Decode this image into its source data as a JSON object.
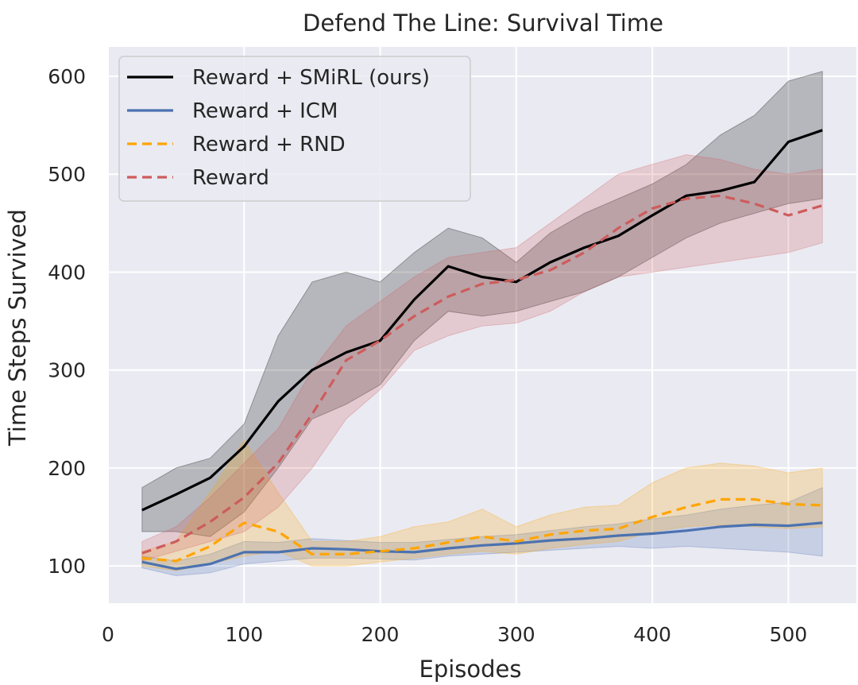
{
  "chart_data": {
    "type": "line",
    "title": "Defend The Line: Survival Time",
    "xlabel": "Episodes",
    "ylabel": "Time Steps Survived",
    "xlim": [
      0,
      550
    ],
    "ylim": [
      62,
      630
    ],
    "xticks": [
      0,
      100,
      200,
      300,
      400,
      500
    ],
    "yticks": [
      100,
      200,
      300,
      400,
      500,
      600
    ],
    "grid": true,
    "legend_position": "top-left",
    "background": "#eaeaf2",
    "series": [
      {
        "name": "Reward + SMiRL (ours)",
        "color": "#000000",
        "dash": "solid",
        "x": [
          25,
          50,
          75,
          100,
          125,
          150,
          175,
          200,
          225,
          250,
          275,
          300,
          325,
          350,
          375,
          400,
          425,
          450,
          475,
          500,
          525
        ],
        "y": [
          157,
          173,
          190,
          222,
          268,
          300,
          318,
          330,
          372,
          406,
          395,
          390,
          410,
          425,
          437,
          458,
          478,
          483,
          492,
          533,
          545
        ],
        "lower": [
          135,
          135,
          130,
          155,
          200,
          250,
          265,
          285,
          330,
          360,
          355,
          360,
          370,
          380,
          395,
          415,
          435,
          450,
          460,
          470,
          475
        ],
        "upper": [
          180,
          200,
          210,
          245,
          335,
          390,
          400,
          390,
          420,
          445,
          435,
          410,
          440,
          460,
          475,
          490,
          510,
          540,
          560,
          595,
          605
        ]
      },
      {
        "name": "Reward + ICM",
        "color": "#4c72b0",
        "dash": "solid",
        "x": [
          25,
          50,
          75,
          100,
          125,
          150,
          175,
          200,
          225,
          250,
          275,
          300,
          325,
          350,
          375,
          400,
          425,
          450,
          475,
          500,
          525
        ],
        "y": [
          104,
          97,
          102,
          114,
          114,
          118,
          117,
          115,
          114,
          118,
          121,
          123,
          126,
          128,
          131,
          133,
          136,
          140,
          142,
          141,
          144
        ],
        "lower": [
          98,
          90,
          93,
          102,
          105,
          108,
          108,
          107,
          106,
          110,
          112,
          114,
          116,
          118,
          120,
          118,
          120,
          118,
          116,
          114,
          110
        ],
        "upper": [
          110,
          105,
          112,
          125,
          124,
          128,
          126,
          124,
          124,
          127,
          130,
          132,
          136,
          140,
          143,
          148,
          152,
          158,
          162,
          165,
          180
        ]
      },
      {
        "name": "Reward + RND",
        "color": "#ffa500",
        "dash": "dashed",
        "x": [
          25,
          50,
          75,
          100,
          125,
          150,
          175,
          200,
          225,
          250,
          275,
          300,
          325,
          350,
          375,
          400,
          425,
          450,
          475,
          500,
          525
        ],
        "y": [
          108,
          105,
          120,
          144,
          135,
          112,
          112,
          115,
          118,
          124,
          130,
          125,
          132,
          136,
          138,
          150,
          160,
          168,
          168,
          163,
          162
        ],
        "lower": [
          100,
          95,
          102,
          110,
          115,
          100,
          100,
          104,
          108,
          112,
          115,
          112,
          118,
          122,
          125,
          135,
          140,
          142,
          140,
          138,
          140
        ],
        "upper": [
          115,
          125,
          175,
          228,
          175,
          125,
          125,
          130,
          140,
          145,
          158,
          140,
          152,
          160,
          162,
          185,
          200,
          205,
          202,
          195,
          200
        ]
      },
      {
        "name": "Reward",
        "color": "#cd5c5c",
        "dash": "dashed",
        "x": [
          25,
          50,
          75,
          100,
          125,
          150,
          175,
          200,
          225,
          250,
          275,
          300,
          325,
          350,
          375,
          400,
          425,
          450,
          475,
          500,
          525
        ],
        "y": [
          113,
          125,
          145,
          170,
          205,
          255,
          310,
          330,
          355,
          375,
          388,
          392,
          402,
          420,
          445,
          465,
          475,
          478,
          470,
          458,
          468
        ],
        "lower": [
          105,
          115,
          125,
          135,
          160,
          200,
          250,
          280,
          320,
          335,
          345,
          348,
          360,
          380,
          395,
          400,
          405,
          410,
          415,
          420,
          430
        ],
        "upper": [
          125,
          140,
          170,
          205,
          240,
          300,
          345,
          370,
          395,
          415,
          420,
          425,
          450,
          475,
          500,
          510,
          520,
          515,
          505,
          500,
          505
        ]
      }
    ]
  }
}
